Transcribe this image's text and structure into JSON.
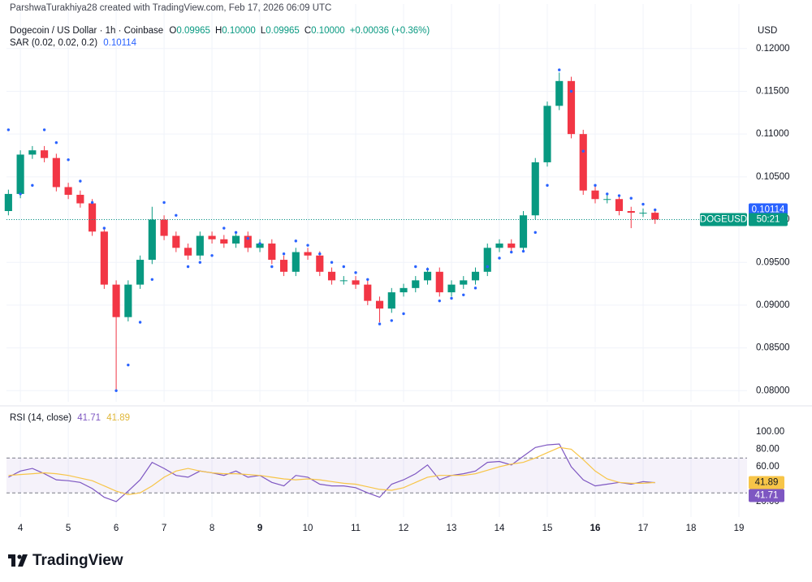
{
  "header": {
    "attribution": "ParshwaTurakhiya28 created with TradingView.com, Feb 17, 2026 06:09 UTC"
  },
  "footer": {
    "brand": "TradingView"
  },
  "chart_data": [
    {
      "type": "candlestick",
      "title": "Dogecoin / US Dollar · 1h · Coinbase",
      "currency": "USD",
      "ohlc": [
        {
          "key": "O",
          "text": "0.09965"
        },
        {
          "key": "H",
          "text": "0.10000"
        },
        {
          "key": "L",
          "text": "0.09965"
        },
        {
          "key": "C",
          "text": "0.10000"
        }
      ],
      "change": "+0.00036 (+0.36%)",
      "indicator": {
        "title": "SAR (0.02, 0.02, 0.2)",
        "value_label": "0.10114"
      },
      "symbol_tag": "DOGEUSD",
      "countdown": "50:21",
      "up_color": "#089981",
      "down_color": "#f23645",
      "sar_color": "#2962ff",
      "grid": true,
      "xlim": [
        3.71,
        19.17
      ],
      "ylim": [
        0.0787,
        0.1233
      ],
      "xticks": [
        4,
        5,
        6,
        7,
        8,
        9,
        10,
        11,
        12,
        13,
        14,
        15,
        16,
        17,
        18,
        19
      ],
      "bold_xticks": [
        9,
        16
      ],
      "yticks": [
        {
          "value": 0.08,
          "label": "0.08000"
        },
        {
          "value": 0.085,
          "label": "0.08500"
        },
        {
          "value": 0.09,
          "label": "0.09000"
        },
        {
          "value": 0.095,
          "label": "0.09500"
        },
        {
          "value": 0.1,
          "label": "0.10000"
        },
        {
          "value": 0.105,
          "label": "0.10500"
        },
        {
          "value": 0.11,
          "label": "0.11000"
        },
        {
          "value": 0.115,
          "label": "0.11500"
        },
        {
          "value": 0.12,
          "label": "0.12000"
        }
      ],
      "x": [
        3.75,
        4,
        4.25,
        4.5,
        4.75,
        5,
        5.25,
        5.5,
        5.75,
        6,
        6.25,
        6.5,
        6.75,
        7,
        7.25,
        7.5,
        7.75,
        8,
        8.25,
        8.5,
        8.75,
        9,
        9.25,
        9.5,
        9.75,
        10,
        10.25,
        10.5,
        10.75,
        11,
        11.25,
        11.5,
        11.75,
        12,
        12.25,
        12.5,
        12.75,
        13,
        13.25,
        13.5,
        13.75,
        14,
        14.25,
        14.5,
        14.75,
        15,
        15.25,
        15.5,
        15.75,
        16,
        16.25,
        16.5,
        16.75,
        17,
        17.25
      ],
      "open": [
        0.101,
        0.103,
        0.1076,
        0.1081,
        0.1072,
        0.1038,
        0.1029,
        0.1019,
        0.0986,
        0.0924,
        0.0886,
        0.0924,
        0.0953,
        0.1,
        0.0981,
        0.0967,
        0.0958,
        0.0981,
        0.0977,
        0.0972,
        0.0981,
        0.0967,
        0.0972,
        0.0953,
        0.0939,
        0.0962,
        0.0958,
        0.0939,
        0.0929,
        0.0929,
        0.0924,
        0.0905,
        0.0896,
        0.0915,
        0.092,
        0.0929,
        0.0939,
        0.0915,
        0.0924,
        0.0929,
        0.0939,
        0.0967,
        0.0972,
        0.0967,
        0.1005,
        0.1067,
        0.1133,
        0.1162,
        0.11,
        0.1034,
        0.1024,
        0.1024,
        0.101,
        0.1008,
        0.1008
      ],
      "high": [
        0.1035,
        0.1081,
        0.1086,
        0.1086,
        0.1077,
        0.1043,
        0.1034,
        0.1024,
        0.0991,
        0.0929,
        0.0929,
        0.0958,
        0.1015,
        0.1005,
        0.0986,
        0.0972,
        0.0986,
        0.0986,
        0.0982,
        0.0986,
        0.0986,
        0.0977,
        0.0977,
        0.0958,
        0.0967,
        0.0967,
        0.0963,
        0.0944,
        0.0934,
        0.0934,
        0.0929,
        0.091,
        0.092,
        0.0925,
        0.0934,
        0.0944,
        0.0944,
        0.0929,
        0.0934,
        0.0944,
        0.0972,
        0.0977,
        0.0977,
        0.101,
        0.1072,
        0.1138,
        0.1172,
        0.1167,
        0.1105,
        0.1039,
        0.1029,
        0.1029,
        0.1015,
        0.1013,
        0.1013
      ],
      "low": [
        0.1005,
        0.1025,
        0.1071,
        0.1067,
        0.1033,
        0.1024,
        0.1014,
        0.0981,
        0.0919,
        0.08,
        0.0881,
        0.0919,
        0.0948,
        0.0976,
        0.0962,
        0.0953,
        0.0953,
        0.0972,
        0.0967,
        0.0967,
        0.0962,
        0.0962,
        0.0948,
        0.0934,
        0.0934,
        0.0953,
        0.0934,
        0.0924,
        0.0924,
        0.0919,
        0.09,
        0.088,
        0.0891,
        0.091,
        0.0915,
        0.0924,
        0.091,
        0.091,
        0.0919,
        0.0924,
        0.0934,
        0.0962,
        0.0962,
        0.0962,
        0.1,
        0.1062,
        0.1128,
        0.1095,
        0.1029,
        0.1019,
        0.1019,
        0.1005,
        0.099,
        0.1003,
        0.0995
      ],
      "close": [
        0.103,
        0.1076,
        0.1081,
        0.1072,
        0.1038,
        0.1029,
        0.1019,
        0.0986,
        0.0924,
        0.0886,
        0.0924,
        0.0953,
        0.1,
        0.0981,
        0.0967,
        0.0958,
        0.0981,
        0.0977,
        0.0972,
        0.0981,
        0.0967,
        0.0972,
        0.0953,
        0.0939,
        0.0962,
        0.0958,
        0.0939,
        0.0929,
        0.0929,
        0.0924,
        0.0905,
        0.0896,
        0.0915,
        0.092,
        0.0929,
        0.0939,
        0.0915,
        0.0924,
        0.0929,
        0.0939,
        0.0967,
        0.0972,
        0.0967,
        0.1005,
        0.1067,
        0.1133,
        0.1162,
        0.11,
        0.1034,
        0.1024,
        0.1024,
        0.101,
        0.1008,
        0.1008,
        0.1
      ],
      "sar": [
        0.1105,
        0.103,
        0.104,
        0.1105,
        0.109,
        0.107,
        0.1045,
        0.102,
        0.099,
        0.08,
        0.083,
        0.088,
        0.093,
        0.102,
        0.1005,
        0.0945,
        0.095,
        0.0958,
        0.099,
        0.0985,
        0.0978,
        0.0972,
        0.0945,
        0.096,
        0.0975,
        0.097,
        0.096,
        0.095,
        0.0945,
        0.0938,
        0.093,
        0.0878,
        0.0882,
        0.089,
        0.0945,
        0.0942,
        0.0905,
        0.0908,
        0.0912,
        0.092,
        0.0945,
        0.0955,
        0.0962,
        0.0963,
        0.0985,
        0.104,
        0.1175,
        0.115,
        0.108,
        0.104,
        0.103,
        0.1028,
        0.1025,
        0.1018,
        0.10114
      ]
    },
    {
      "type": "line",
      "title": "RSI (14, close)",
      "ylim": [
        7,
        125
      ],
      "yticks": [
        {
          "value": 20,
          "label": "20.00"
        },
        {
          "value": 60,
          "label": "60.00"
        },
        {
          "value": 80,
          "label": "80.00"
        },
        {
          "value": 100,
          "label": "100.00"
        }
      ],
      "bands": [
        30,
        70
      ],
      "band_color": "#7e57c2",
      "series": [
        {
          "color": "#7e57c2",
          "values": [
            48,
            55,
            58,
            52,
            45,
            44,
            42,
            35,
            25,
            20,
            32,
            45,
            65,
            58,
            50,
            48,
            55,
            53,
            50,
            55,
            48,
            50,
            42,
            38,
            50,
            48,
            40,
            38,
            38,
            36,
            30,
            25,
            40,
            45,
            52,
            62,
            45,
            50,
            52,
            55,
            65,
            66,
            62,
            72,
            82,
            85,
            86,
            60,
            45,
            38,
            40,
            42,
            40,
            43,
            41.71
          ]
        },
        {
          "color": "#f7c548",
          "values": [
            50,
            51,
            52,
            53,
            52,
            50,
            47,
            44,
            38,
            32,
            28,
            30,
            38,
            48,
            55,
            58,
            55,
            53,
            52,
            52,
            51,
            50,
            48,
            46,
            45,
            46,
            45,
            43,
            41,
            40,
            37,
            34,
            33,
            36,
            42,
            48,
            50,
            50,
            50,
            52,
            56,
            60,
            63,
            65,
            70,
            76,
            82,
            80,
            68,
            55,
            46,
            42,
            41,
            41,
            41.89
          ]
        }
      ]
    }
  ]
}
